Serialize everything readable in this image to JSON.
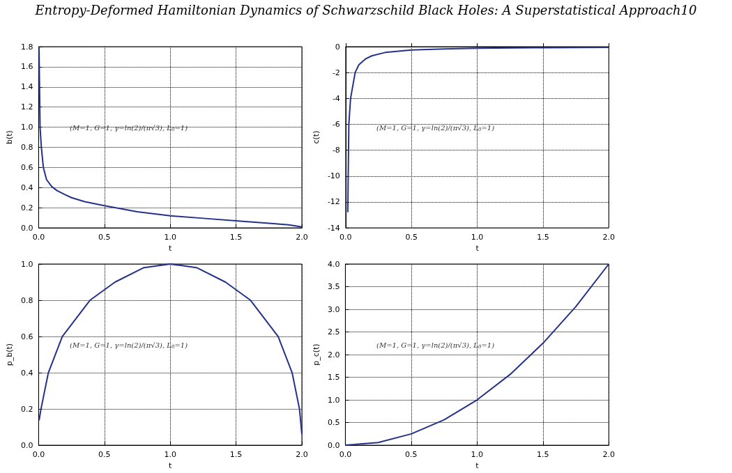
{
  "chart_data": [
    {
      "type": "line",
      "title": "Entropy-Deformed Hamiltonian Dynamics of Schwarzschild Black Holes: A Superstatistical Approach10",
      "xlabel": "t",
      "ylabel": "b(t)",
      "annotations": [
        "(M=1, G=1, γ=ln(2)/(π√3), L$_{0}$=1)"
      ],
      "grid": true,
      "line_style": "solid",
      "xlim": [
        0,
        2
      ],
      "xticks": [
        {
          "value": 0,
          "label": "0.0"
        },
        {
          "value": 0.5,
          "label": "0.5"
        },
        {
          "value": 1,
          "label": "1.0"
        },
        {
          "value": 1.5,
          "label": "1.5"
        },
        {
          "value": 2,
          "label": "2.0"
        }
      ],
      "ylim": [
        0,
        1.8
      ],
      "yticks": [
        {
          "value": 0,
          "label": "0.0"
        },
        {
          "value": 0.2,
          "label": "0.2"
        },
        {
          "value": 0.4,
          "label": "0.4"
        },
        {
          "value": 0.6,
          "label": "0.6"
        },
        {
          "value": 0.8,
          "label": "0.8"
        },
        {
          "value": 1,
          "label": "1.0"
        },
        {
          "value": 1.2,
          "label": "1.2"
        },
        {
          "value": 1.4,
          "label": "1.4"
        },
        {
          "value": 1.6,
          "label": "1.6"
        },
        {
          "value": 1.8,
          "label": "1.8"
        }
      ],
      "series": [
        {
          "color": "#23318a",
          "x": [
            0.003,
            0.007,
            0.011,
            0.021,
            0.036,
            0.06,
            0.1,
            0.14,
            0.2,
            0.25,
            0.35,
            0.5,
            0.75,
            1.0,
            1.25,
            1.5,
            1.75,
            1.9,
            2.0
          ],
          "values": [
            1.8,
            1.4,
            1.0,
            0.8,
            0.6,
            0.48,
            0.41,
            0.37,
            0.33,
            0.3,
            0.26,
            0.22,
            0.16,
            0.12,
            0.095,
            0.07,
            0.045,
            0.03,
            0.01
          ]
        }
      ]
    },
    {
      "type": "line",
      "xlabel": "t",
      "ylabel": "c(t)",
      "annotations": [
        "(M=1, G=1, γ=ln(2)/(π√3), L$_{0}$=1)"
      ],
      "grid": true,
      "line_style": "solid",
      "xlim": [
        0,
        2
      ],
      "xticks": [
        {
          "value": 0,
          "label": "0.0"
        },
        {
          "value": 0.5,
          "label": "0.5"
        },
        {
          "value": 1,
          "label": "1.0"
        },
        {
          "value": 1.5,
          "label": "1.5"
        },
        {
          "value": 2,
          "label": "2.0"
        }
      ],
      "ylim": [
        -14,
        0
      ],
      "yticks": [
        -14,
        -12,
        -10,
        -8,
        -6,
        -4,
        -2,
        0
      ],
      "series": [
        {
          "color": "#23318a",
          "x": [
            0.016,
            0.019,
            0.024,
            0.037,
            0.072,
            0.1,
            0.15,
            0.2,
            0.3,
            0.5,
            0.75,
            1.0,
            1.5,
            2.0
          ],
          "values": [
            -12.8,
            -10,
            -6,
            -4,
            -2,
            -1.4,
            -0.95,
            -0.7,
            -0.45,
            -0.25,
            -0.17,
            -0.12,
            -0.08,
            -0.05
          ]
        }
      ]
    },
    {
      "type": "line",
      "xlabel": "t",
      "ylabel": "p_b(t)",
      "annotations": [
        "(M=1, G=1, γ=ln(2)/(π√3), L$_{0}$=1)"
      ],
      "grid": true,
      "line_style": "solid",
      "xlim": [
        0,
        2
      ],
      "xticks": [
        {
          "value": 0,
          "label": "0.0"
        },
        {
          "value": 0.5,
          "label": "0.5"
        },
        {
          "value": 1,
          "label": "1.0"
        },
        {
          "value": 1.5,
          "label": "1.5"
        },
        {
          "value": 2,
          "label": "2.0"
        }
      ],
      "ylim": [
        0,
        1
      ],
      "yticks": [
        {
          "value": 0,
          "label": "0.0"
        },
        {
          "value": 0.2,
          "label": "0.2"
        },
        {
          "value": 0.4,
          "label": "0.4"
        },
        {
          "value": 0.6,
          "label": "0.6"
        },
        {
          "value": 0.8,
          "label": "0.8"
        },
        {
          "value": 1,
          "label": "1.0"
        }
      ],
      "series": [
        {
          "color": "#23318a",
          "x": [
            0.0035,
            0.018,
            0.074,
            0.18,
            0.39,
            0.58,
            0.8,
            1.0,
            1.2,
            1.42,
            1.61,
            1.82,
            1.926,
            1.982,
            2.0
          ],
          "values": [
            0.137,
            0.2,
            0.4,
            0.6,
            0.8,
            0.9,
            0.98,
            1.0,
            0.98,
            0.9,
            0.8,
            0.6,
            0.4,
            0.2,
            0.06
          ]
        }
      ]
    },
    {
      "type": "line",
      "xlabel": "t",
      "ylabel": "p_c(t)",
      "annotations": [
        "(M=1, G=1, γ=ln(2)/(π√3), L$_{0}$=1)"
      ],
      "grid": true,
      "line_style": "solid",
      "xlim": [
        0,
        2
      ],
      "xticks": [
        {
          "value": 0,
          "label": "0.0"
        },
        {
          "value": 0.5,
          "label": "0.5"
        },
        {
          "value": 1,
          "label": "1.0"
        },
        {
          "value": 1.5,
          "label": "1.5"
        },
        {
          "value": 2,
          "label": "2.0"
        }
      ],
      "ylim": [
        0,
        4
      ],
      "yticks": [
        {
          "value": 0,
          "label": "0.0"
        },
        {
          "value": 0.5,
          "label": "0.5"
        },
        {
          "value": 1,
          "label": "1.0"
        },
        {
          "value": 1.5,
          "label": "1.5"
        },
        {
          "value": 2,
          "label": "2.0"
        },
        {
          "value": 2.5,
          "label": "2.5"
        },
        {
          "value": 3,
          "label": "3.0"
        },
        {
          "value": 3.5,
          "label": "3.5"
        },
        {
          "value": 4,
          "label": "4.0"
        }
      ],
      "series": [
        {
          "color": "#23318a",
          "x": [
            0,
            0.25,
            0.5,
            0.75,
            1.0,
            1.25,
            1.5,
            1.75,
            2.0
          ],
          "values": [
            0,
            0.06,
            0.25,
            0.56,
            1.0,
            1.56,
            2.25,
            3.06,
            4.0
          ]
        }
      ]
    }
  ]
}
